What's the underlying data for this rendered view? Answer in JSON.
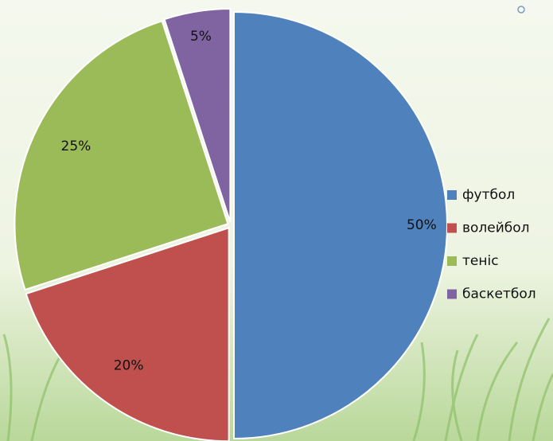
{
  "chart_data": {
    "type": "pie",
    "categories": [
      "футбол",
      "волейбол",
      "теніс",
      "баскетбол"
    ],
    "values": [
      50,
      20,
      25,
      5
    ],
    "value_labels": [
      "50%",
      "20%",
      "25%",
      "5%"
    ],
    "colors": [
      "#4f81bd",
      "#c0504d",
      "#9bbb59",
      "#8064a2"
    ],
    "legend": "right"
  }
}
